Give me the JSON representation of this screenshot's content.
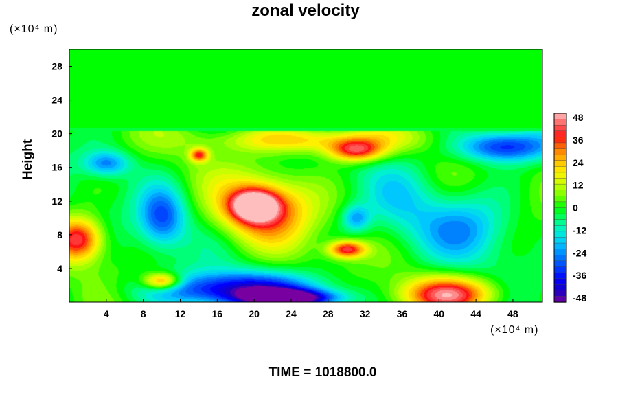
{
  "chart_data": {
    "type": "heatmap",
    "title": "zonal velocity",
    "ylabel": "Height",
    "x_unit_label": "(×10⁴ m)",
    "y_unit_label": "(×10⁴ m)",
    "x_ticks": [
      4,
      8,
      12,
      16,
      20,
      24,
      28,
      32,
      36,
      40,
      44,
      48
    ],
    "y_ticks": [
      4,
      8,
      12,
      16,
      20,
      24,
      28
    ],
    "xlim": [
      0,
      51.2
    ],
    "ylim": [
      0,
      30
    ],
    "colorbar": {
      "ticks": [
        48,
        36,
        24,
        12,
        0,
        -12,
        -24,
        -36,
        -48
      ],
      "range": [
        -48,
        48
      ]
    },
    "background_value": 0,
    "features": [
      {
        "x": 21,
        "y": 11,
        "rx": 5,
        "ry": 4,
        "value": 32
      },
      {
        "x": 20,
        "y": 11.5,
        "rx": 2.5,
        "ry": 1.8,
        "value": 46
      },
      {
        "x": 1,
        "y": 7.5,
        "rx": 2.5,
        "ry": 2.5,
        "value": 40
      },
      {
        "x": 10,
        "y": 2.5,
        "rx": 2,
        "ry": 1,
        "value": 36
      },
      {
        "x": 41,
        "y": 1,
        "rx": 5,
        "ry": 2,
        "value": 40
      },
      {
        "x": 26,
        "y": 19.3,
        "rx": 10,
        "ry": 1.5,
        "value": 24
      },
      {
        "x": 31,
        "y": 18,
        "rx": 3,
        "ry": 1.3,
        "value": 36
      },
      {
        "x": 14,
        "y": 17.5,
        "rx": 1,
        "ry": 0.8,
        "value": 32
      },
      {
        "x": 30,
        "y": 6.3,
        "rx": 2,
        "ry": 1,
        "value": 40
      },
      {
        "x": 18,
        "y": 1.5,
        "rx": 9,
        "ry": 2,
        "value": -40
      },
      {
        "x": 24,
        "y": 0.5,
        "rx": 5,
        "ry": 1,
        "value": -48
      },
      {
        "x": 10,
        "y": 10,
        "rx": 2.5,
        "ry": 3.5,
        "value": -28
      },
      {
        "x": 4,
        "y": 16.5,
        "rx": 2.5,
        "ry": 1.5,
        "value": -24
      },
      {
        "x": 47,
        "y": 18.5,
        "rx": 5,
        "ry": 1.8,
        "value": -36
      },
      {
        "x": 43,
        "y": 9,
        "rx": 5,
        "ry": 4,
        "value": -18
      },
      {
        "x": 36,
        "y": 12,
        "rx": 4,
        "ry": 5,
        "value": -10
      },
      {
        "x": 31,
        "y": 10,
        "rx": 1.5,
        "ry": 1.5,
        "value": -20
      }
    ]
  },
  "time_label": "TIME = 1018800.0"
}
